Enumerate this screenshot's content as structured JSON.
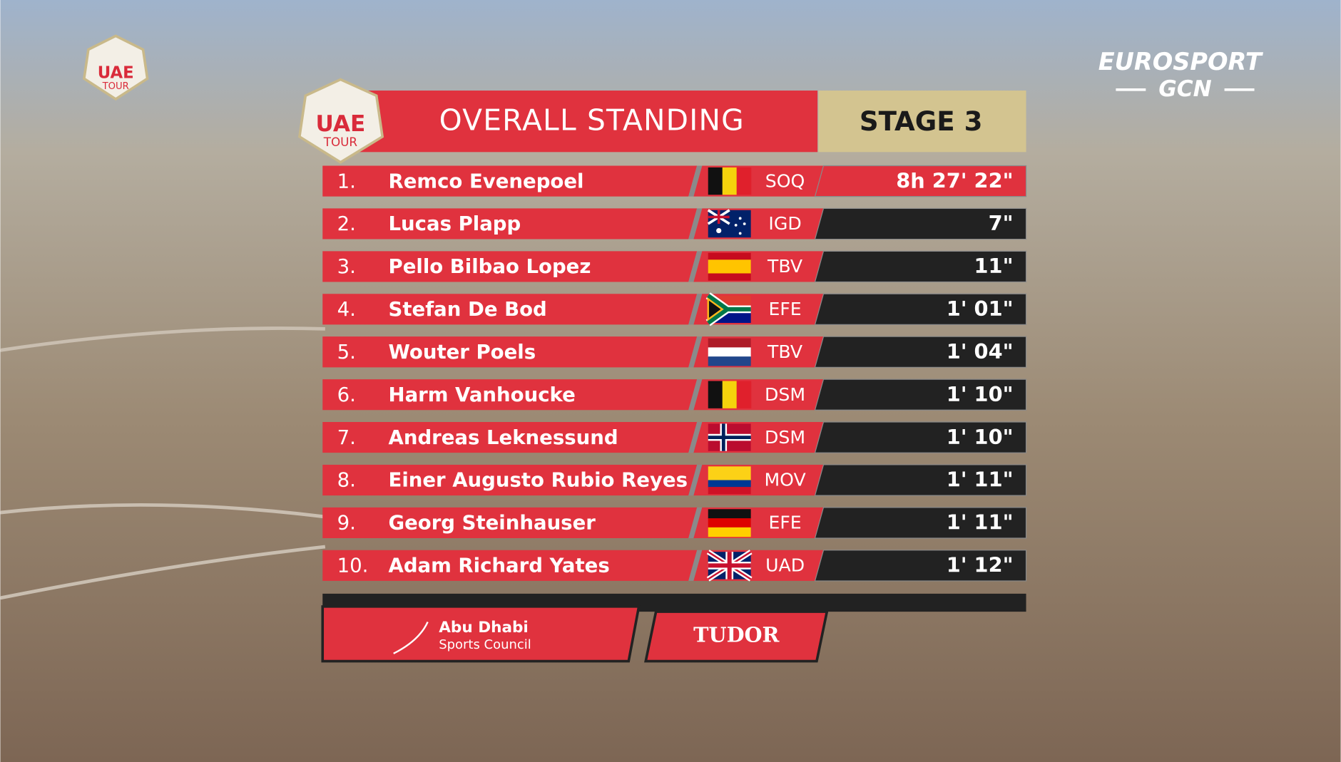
{
  "logo_small": {
    "line1": "UAE",
    "line2": "TOUR"
  },
  "broadcaster": {
    "name": "EUROSPORT",
    "sub": "GCN"
  },
  "header": {
    "logo": {
      "line1": "UAE",
      "line2": "TOUR"
    },
    "title": "OVERALL STANDING",
    "stage": "STAGE 3"
  },
  "standings": [
    {
      "rank": "1.",
      "name": "Remco Evenepoel",
      "team": "SOQ",
      "time": "8h 27' 22\""
    },
    {
      "rank": "2.",
      "name": "Lucas Plapp",
      "team": "IGD",
      "time": "7\""
    },
    {
      "rank": "3.",
      "name": "Pello Bilbao Lopez",
      "team": "TBV",
      "time": "11\""
    },
    {
      "rank": "4.",
      "name": "Stefan De Bod",
      "team": "EFE",
      "time": "1' 01\""
    },
    {
      "rank": "5.",
      "name": "Wouter Poels",
      "team": "TBV",
      "time": "1' 04\""
    },
    {
      "rank": "6.",
      "name": "Harm Vanhoucke",
      "team": "DSM",
      "time": "1' 10\""
    },
    {
      "rank": "7.",
      "name": "Andreas Leknessund",
      "team": "DSM",
      "time": "1' 10\""
    },
    {
      "rank": "8.",
      "name": "Einer Augusto Rubio Reyes",
      "team": "MOV",
      "time": "1' 11\""
    },
    {
      "rank": "9.",
      "name": "Georg Steinhauser",
      "team": "EFE",
      "time": "1' 11\""
    },
    {
      "rank": "10.",
      "name": "Adam Richard Yates",
      "team": "UAD",
      "time": "1' 12\""
    }
  ],
  "sponsors": {
    "abu_dhabi": {
      "line1": "Abu Dhabi",
      "line2": "Sports Council"
    },
    "tudor": "TUDOR"
  }
}
